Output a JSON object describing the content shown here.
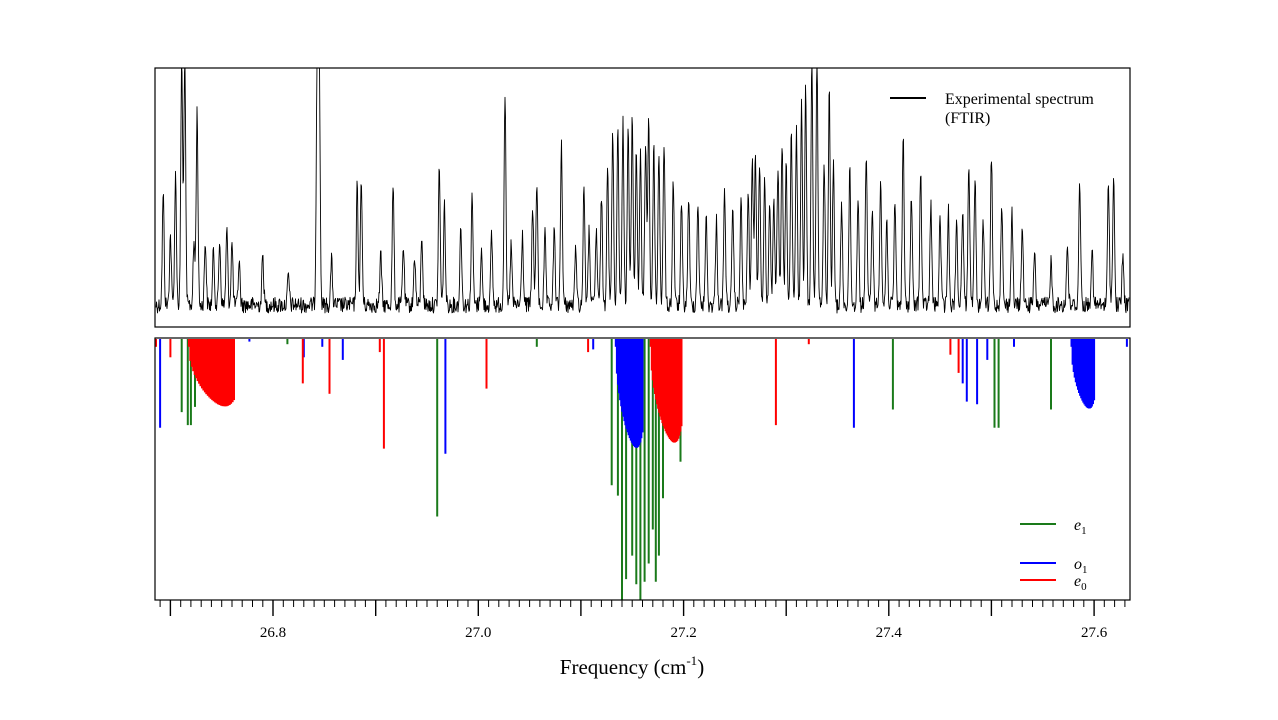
{
  "chart_data": {
    "type": "line",
    "xlabel": {
      "main": "Frequency (cm",
      "sup": "-1",
      "end": ")"
    },
    "xlim": [
      26.685,
      27.635
    ],
    "x_ticks": [
      26.8,
      27.0,
      27.2,
      27.4,
      27.6
    ],
    "x_tick_labels": [
      "26.8",
      "27.0",
      "27.2",
      "27.4",
      "27.6"
    ],
    "panels": [
      {
        "name": "experimental",
        "legend": {
          "lines": [
            "Experimental spectrum",
            "(FTIR)"
          ],
          "color": "#000000"
        },
        "ylim": [
          0,
          1
        ],
        "peaks": [
          [
            26.693,
            0.45
          ],
          [
            26.7,
            0.28
          ],
          [
            26.705,
            0.52
          ],
          [
            26.711,
            1.0
          ],
          [
            26.714,
            1.0
          ],
          [
            26.723,
            0.25
          ],
          [
            26.726,
            0.78
          ],
          [
            26.734,
            0.26
          ],
          [
            26.742,
            0.22
          ],
          [
            26.748,
            0.26
          ],
          [
            26.755,
            0.3
          ],
          [
            26.76,
            0.25
          ],
          [
            26.767,
            0.18
          ],
          [
            26.79,
            0.2
          ],
          [
            26.815,
            0.12
          ],
          [
            26.843,
            1.0
          ],
          [
            26.845,
            1.0
          ],
          [
            26.857,
            0.18
          ],
          [
            26.882,
            0.48
          ],
          [
            26.886,
            0.5
          ],
          [
            26.905,
            0.2
          ],
          [
            26.917,
            0.48
          ],
          [
            26.927,
            0.24
          ],
          [
            26.938,
            0.2
          ],
          [
            26.945,
            0.28
          ],
          [
            26.962,
            0.56
          ],
          [
            26.967,
            0.4
          ],
          [
            26.983,
            0.32
          ],
          [
            26.994,
            0.44
          ],
          [
            27.003,
            0.22
          ],
          [
            27.013,
            0.28
          ],
          [
            27.026,
            0.86
          ],
          [
            27.032,
            0.24
          ],
          [
            27.043,
            0.28
          ],
          [
            27.053,
            0.4
          ],
          [
            27.057,
            0.5
          ],
          [
            27.065,
            0.28
          ],
          [
            27.074,
            0.3
          ],
          [
            27.081,
            0.66
          ],
          [
            27.095,
            0.24
          ],
          [
            27.103,
            0.48
          ],
          [
            27.108,
            0.3
          ],
          [
            27.115,
            0.3
          ],
          [
            27.12,
            0.44
          ],
          [
            27.126,
            0.58
          ],
          [
            27.131,
            0.7
          ],
          [
            27.136,
            0.72
          ],
          [
            27.141,
            0.74
          ],
          [
            27.146,
            0.72
          ],
          [
            27.15,
            0.76
          ],
          [
            27.154,
            0.62
          ],
          [
            27.158,
            0.6
          ],
          [
            27.163,
            0.66
          ],
          [
            27.166,
            0.76
          ],
          [
            27.171,
            0.64
          ],
          [
            27.176,
            0.62
          ],
          [
            27.181,
            0.66
          ],
          [
            27.19,
            0.5
          ],
          [
            27.198,
            0.4
          ],
          [
            27.205,
            0.44
          ],
          [
            27.214,
            0.42
          ],
          [
            27.222,
            0.36
          ],
          [
            27.232,
            0.34
          ],
          [
            27.24,
            0.46
          ],
          [
            27.248,
            0.38
          ],
          [
            27.256,
            0.42
          ],
          [
            27.263,
            0.46
          ],
          [
            27.267,
            0.58
          ],
          [
            27.27,
            0.6
          ],
          [
            27.274,
            0.58
          ],
          [
            27.279,
            0.5
          ],
          [
            27.284,
            0.42
          ],
          [
            27.288,
            0.4
          ],
          [
            27.292,
            0.56
          ],
          [
            27.296,
            0.64
          ],
          [
            27.3,
            0.56
          ],
          [
            27.305,
            0.68
          ],
          [
            27.31,
            0.7
          ],
          [
            27.315,
            0.8
          ],
          [
            27.319,
            0.88
          ],
          [
            27.325,
            1.0
          ],
          [
            27.33,
            1.0
          ],
          [
            27.337,
            0.58
          ],
          [
            27.342,
            0.86
          ],
          [
            27.346,
            0.56
          ],
          [
            27.354,
            0.4
          ],
          [
            27.362,
            0.54
          ],
          [
            27.37,
            0.44
          ],
          [
            27.378,
            0.62
          ],
          [
            27.384,
            0.4
          ],
          [
            27.392,
            0.52
          ],
          [
            27.398,
            0.34
          ],
          [
            27.406,
            0.42
          ],
          [
            27.414,
            0.68
          ],
          [
            27.422,
            0.44
          ],
          [
            27.431,
            0.54
          ],
          [
            27.441,
            0.4
          ],
          [
            27.45,
            0.36
          ],
          [
            27.458,
            0.38
          ],
          [
            27.466,
            0.34
          ],
          [
            27.472,
            0.4
          ],
          [
            27.478,
            0.58
          ],
          [
            27.484,
            0.52
          ],
          [
            27.492,
            0.34
          ],
          [
            27.5,
            0.6
          ],
          [
            27.51,
            0.42
          ],
          [
            27.52,
            0.38
          ],
          [
            27.53,
            0.32
          ],
          [
            27.542,
            0.2
          ],
          [
            27.558,
            0.18
          ],
          [
            27.574,
            0.24
          ],
          [
            27.586,
            0.5
          ],
          [
            27.598,
            0.22
          ],
          [
            27.614,
            0.5
          ],
          [
            27.619,
            0.52
          ],
          [
            27.628,
            0.2
          ]
        ]
      },
      {
        "name": "calculated",
        "legend": [
          {
            "label": "e",
            "sub": "1",
            "color": "#1a7a1a"
          },
          {
            "label": "o",
            "sub": "1",
            "color": "#0000ff"
          },
          {
            "label": "e",
            "sub": "0",
            "color": "#ff0000"
          }
        ],
        "ylim": [
          0,
          1
        ],
        "series": [
          {
            "color": "#1a7a1a",
            "sticks": [
              [
                26.711,
                0.28
              ],
              [
                26.717,
                0.33
              ],
              [
                26.72,
                0.33
              ],
              [
                26.724,
                0.26
              ],
              [
                26.814,
                0.02
              ],
              [
                26.96,
                0.68
              ],
              [
                27.057,
                0.03
              ],
              [
                27.13,
                0.56
              ],
              [
                27.136,
                0.6
              ],
              [
                27.14,
                1.0
              ],
              [
                27.144,
                0.92
              ],
              [
                27.15,
                0.83
              ],
              [
                27.154,
                0.94
              ],
              [
                27.158,
                1.0
              ],
              [
                27.162,
                0.93
              ],
              [
                27.166,
                0.86
              ],
              [
                27.17,
                0.73
              ],
              [
                27.173,
                0.93
              ],
              [
                27.176,
                0.83
              ],
              [
                27.18,
                0.61
              ],
              [
                27.197,
                0.47
              ],
              [
                27.404,
                0.27
              ],
              [
                27.503,
                0.34
              ],
              [
                27.507,
                0.34
              ],
              [
                27.558,
                0.27
              ]
            ]
          },
          {
            "color": "#0000ff",
            "sticks": [
              [
                26.69,
                0.34
              ],
              [
                26.777,
                0.01
              ],
              [
                26.83,
                0.07
              ],
              [
                26.848,
                0.03
              ],
              [
                26.868,
                0.08
              ],
              [
                26.968,
                0.44
              ],
              [
                27.112,
                0.04
              ],
              [
                27.194,
                0.01
              ],
              [
                27.366,
                0.34
              ],
              [
                27.472,
                0.17
              ],
              [
                27.476,
                0.24
              ],
              [
                27.486,
                0.25
              ],
              [
                27.496,
                0.08
              ],
              [
                27.522,
                0.03
              ],
              [
                27.632,
                0.03
              ]
            ]
          },
          {
            "color": "#0000ff",
            "family": {
              "start": 27.134,
              "end": 27.16,
              "n": 26,
              "ymin": 0.03,
              "ymax": 0.44,
              "tail": 0.2
            }
          },
          {
            "color": "#0000ff",
            "family": {
              "start": 27.578,
              "end": 27.6,
              "n": 22,
              "ymin": 0.03,
              "ymax": 0.28,
              "tail": 0.18
            }
          },
          {
            "color": "#ff0000",
            "sticks": [
              [
                26.686,
                0.03
              ],
              [
                26.7,
                0.07
              ],
              [
                26.829,
                0.17
              ],
              [
                26.855,
                0.21
              ],
              [
                26.904,
                0.05
              ],
              [
                26.908,
                0.42
              ],
              [
                27.008,
                0.19
              ],
              [
                27.107,
                0.05
              ],
              [
                27.29,
                0.33
              ],
              [
                27.322,
                0.02
              ],
              [
                27.46,
                0.06
              ],
              [
                27.468,
                0.13
              ]
            ]
          },
          {
            "color": "#ff0000",
            "family": {
              "start": 26.718,
              "end": 26.762,
              "n": 32,
              "ymin": 0.03,
              "ymax": 0.27,
              "tail": 0.15
            }
          },
          {
            "color": "#ff0000",
            "family": {
              "start": 27.168,
              "end": 27.198,
              "n": 30,
              "ymin": 0.03,
              "ymax": 0.42,
              "tail": 0.22
            }
          }
        ]
      }
    ]
  }
}
